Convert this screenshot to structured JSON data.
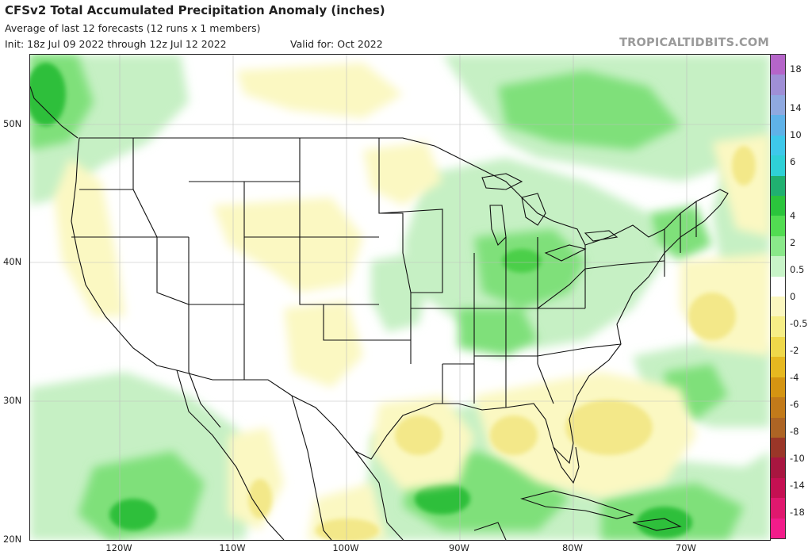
{
  "header": {
    "title": "CFSv2 Total Accumulated Precipitation Anomaly (inches)",
    "subtitle": "Average of last 12 forecasts (12 runs x 1 members)",
    "init": "Init: 18z Jul 09 2022 through 12z Jul 12 2022",
    "valid": "Valid for: Oct 2022"
  },
  "watermark": "TROPICALTIDBITS.COM",
  "map": {
    "lat_labels": [
      "50N",
      "40N",
      "30N",
      "20N"
    ],
    "lon_labels": [
      "120W",
      "110W",
      "100W",
      "90W",
      "80W",
      "70W"
    ]
  },
  "colorbar": {
    "labels": [
      "18",
      "14",
      "10",
      "6",
      "4",
      "2",
      "0.5",
      "0",
      "-0.5",
      "-2",
      "-4",
      "-6",
      "-8",
      "-10",
      "-14",
      "-18"
    ],
    "colors": [
      "#b565c9",
      "#9f8fd6",
      "#8fa9e0",
      "#5fb2e8",
      "#3ec8ea",
      "#2fd0d6",
      "#20b070",
      "#2bc43c",
      "#52dc52",
      "#8ae88a",
      "#c8f4c8",
      "#ffffff",
      "#fbf7bf",
      "#f6ee86",
      "#efd84a",
      "#e6b820",
      "#d49412",
      "#c27a1a",
      "#ad6424",
      "#9a3628",
      "#a81640",
      "#c41052",
      "#e0186e",
      "#f21c8a"
    ]
  }
}
